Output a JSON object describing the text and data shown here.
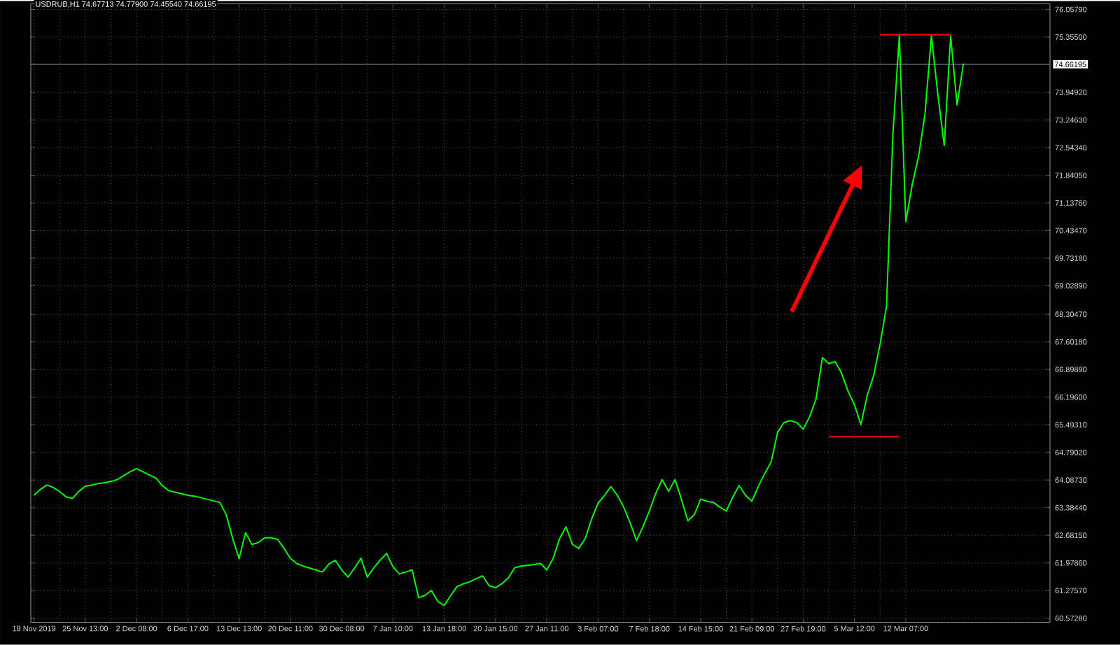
{
  "chart_data": {
    "type": "line",
    "title": "USDRUB,H1  74.67713 74.77900 74.45540 74.66195",
    "categories": [
      "18 Nov 2019",
      null,
      null,
      null,
      null,
      null,
      null,
      null,
      "25 Nov 13:00",
      null,
      null,
      null,
      null,
      null,
      null,
      null,
      "2 Dec 08:00",
      null,
      null,
      null,
      null,
      null,
      null,
      null,
      "6 Dec 17:00",
      null,
      null,
      null,
      null,
      null,
      null,
      null,
      "13 Dec 13:00",
      null,
      null,
      null,
      null,
      null,
      null,
      null,
      "20 Dec 11:00",
      null,
      null,
      null,
      null,
      null,
      null,
      null,
      "30 Dec 08:00",
      null,
      null,
      null,
      null,
      null,
      null,
      null,
      "7 Jan 10:00",
      null,
      null,
      null,
      null,
      null,
      null,
      null,
      "13 Jan 18:00",
      null,
      null,
      null,
      null,
      null,
      null,
      null,
      "20 Jan 15:00",
      null,
      null,
      null,
      null,
      null,
      null,
      null,
      "27 Jan 11:00",
      null,
      null,
      null,
      null,
      null,
      null,
      null,
      "3 Feb 07:00",
      null,
      null,
      null,
      null,
      null,
      null,
      null,
      "7 Feb 18:00",
      null,
      null,
      null,
      null,
      null,
      null,
      null,
      "14 Feb 15:00",
      null,
      null,
      null,
      null,
      null,
      null,
      null,
      "21 Feb 09:00",
      null,
      null,
      null,
      null,
      null,
      null,
      null,
      "27 Feb 19:00",
      null,
      null,
      null,
      null,
      null,
      null,
      null,
      "5 Mar 12:00",
      null,
      null,
      null,
      null,
      null,
      null,
      null,
      "12 Mar 07:00",
      null,
      null,
      null,
      null,
      null,
      null,
      null,
      null,
      null,
      null,
      null,
      null,
      null,
      null,
      null,
      null,
      null,
      null,
      null,
      null,
      null,
      null
    ],
    "series": [
      {
        "color": "#00ff00",
        "values": [
          63.7,
          63.85,
          63.96,
          63.9,
          63.8,
          63.66,
          63.62,
          63.8,
          63.93,
          63.96,
          64.0,
          64.02,
          64.05,
          64.1,
          64.2,
          64.3,
          64.38,
          64.3,
          64.22,
          64.14,
          63.95,
          63.82,
          63.78,
          63.74,
          63.7,
          63.68,
          63.64,
          63.6,
          63.56,
          63.52,
          63.2,
          62.6,
          62.09,
          62.75,
          62.45,
          62.5,
          62.62,
          62.62,
          62.58,
          62.35,
          62.1,
          61.96,
          61.9,
          61.85,
          61.8,
          61.75,
          61.95,
          62.05,
          61.8,
          61.62,
          61.85,
          62.1,
          61.62,
          61.85,
          62.05,
          62.22,
          61.88,
          61.7,
          61.75,
          61.8,
          61.1,
          61.15,
          61.28,
          61.0,
          60.9,
          61.15,
          61.38,
          61.45,
          61.5,
          61.58,
          61.65,
          61.4,
          61.35,
          61.45,
          61.6,
          61.86,
          61.9,
          61.92,
          61.94,
          61.97,
          61.8,
          62.1,
          62.6,
          62.9,
          62.45,
          62.35,
          62.6,
          63.1,
          63.5,
          63.7,
          63.92,
          63.7,
          63.4,
          63.0,
          62.55,
          62.9,
          63.3,
          63.75,
          64.1,
          63.8,
          64.1,
          63.6,
          63.05,
          63.2,
          63.6,
          63.55,
          63.52,
          63.4,
          63.3,
          63.65,
          63.95,
          63.7,
          63.55,
          63.93,
          64.25,
          64.55,
          65.3,
          65.55,
          65.6,
          65.55,
          65.38,
          65.7,
          66.15,
          67.2,
          67.05,
          67.1,
          66.8,
          66.35,
          66.0,
          65.5,
          66.25,
          66.75,
          67.55,
          68.51,
          72.9,
          75.39,
          70.66,
          71.6,
          72.32,
          73.4,
          75.39,
          73.9,
          72.6,
          75.39,
          73.63,
          74.68,
          null,
          null,
          null,
          null,
          null,
          null,
          null,
          null,
          null,
          null,
          null,
          null,
          null
        ]
      },
      {
        "color": "#ff0000",
        "values": [
          null,
          null,
          null,
          null,
          null,
          null,
          null,
          null,
          null,
          null,
          null,
          null,
          null,
          null,
          null,
          null,
          null,
          null,
          null,
          null,
          null,
          null,
          null,
          null,
          null,
          null,
          null,
          null,
          null,
          null,
          null,
          null,
          null,
          null,
          null,
          null,
          null,
          null,
          null,
          null,
          null,
          null,
          null,
          null,
          null,
          null,
          null,
          null,
          null,
          null,
          null,
          null,
          null,
          null,
          null,
          null,
          null,
          null,
          null,
          null,
          null,
          null,
          null,
          null,
          null,
          null,
          null,
          null,
          null,
          null,
          null,
          null,
          null,
          null,
          null,
          null,
          null,
          null,
          null,
          null,
          null,
          null,
          null,
          null,
          null,
          null,
          null,
          null,
          null,
          null,
          null,
          null,
          null,
          null,
          null,
          null,
          null,
          null,
          null,
          null,
          null,
          null,
          null,
          null,
          null,
          null,
          null,
          null,
          null,
          null,
          null,
          null,
          null,
          null,
          null,
          null,
          null,
          null,
          null,
          null,
          null,
          null,
          null,
          null,
          null,
          null,
          null,
          null,
          null,
          null,
          null,
          null,
          75.42,
          75.42,
          75.42,
          75.42,
          75.42,
          75.42,
          75.42,
          75.42,
          75.42,
          75.42,
          75.42,
          75.42,
          null,
          null,
          null,
          null,
          null,
          null,
          null,
          null,
          null,
          null,
          null,
          null,
          null,
          null,
          null
        ]
      },
      {
        "color": "#ff0000",
        "values": [
          null,
          null,
          null,
          null,
          null,
          null,
          null,
          null,
          null,
          null,
          null,
          null,
          null,
          null,
          null,
          null,
          null,
          null,
          null,
          null,
          null,
          null,
          null,
          null,
          null,
          null,
          null,
          null,
          null,
          null,
          null,
          null,
          null,
          null,
          null,
          null,
          null,
          null,
          null,
          null,
          null,
          null,
          null,
          null,
          null,
          null,
          null,
          null,
          null,
          null,
          null,
          null,
          null,
          null,
          null,
          null,
          null,
          null,
          null,
          null,
          null,
          null,
          null,
          null,
          null,
          null,
          null,
          null,
          null,
          null,
          null,
          null,
          null,
          null,
          null,
          null,
          null,
          null,
          null,
          null,
          null,
          null,
          null,
          null,
          null,
          null,
          null,
          null,
          null,
          null,
          null,
          null,
          null,
          null,
          null,
          null,
          null,
          null,
          null,
          null,
          null,
          null,
          null,
          null,
          null,
          null,
          null,
          null,
          null,
          null,
          null,
          null,
          null,
          null,
          null,
          null,
          null,
          null,
          null,
          null,
          null,
          null,
          null,
          null,
          65.19,
          65.19,
          65.19,
          65.19,
          65.19,
          65.19,
          65.19,
          65.19,
          65.19,
          65.19,
          65.19,
          65.19,
          null,
          null,
          null,
          null,
          null,
          null,
          null,
          null,
          null,
          null,
          null,
          null,
          null,
          null,
          null,
          null,
          null,
          null,
          null,
          null,
          null,
          null,
          null
        ]
      }
    ],
    "ylim": [
      60.47,
      76.2
    ],
    "yticks": [
      {
        "value": 76.0579,
        "label": "76.05790"
      },
      {
        "value": 75.355,
        "label": "75.35500"
      },
      {
        "value": 73.9492,
        "label": "73.94920"
      },
      {
        "value": 73.2463,
        "label": "73.24630"
      },
      {
        "value": 72.5434,
        "label": "72.54340"
      },
      {
        "value": 71.8405,
        "label": "71.84050"
      },
      {
        "value": 71.1376,
        "label": "71.13760"
      },
      {
        "value": 70.4347,
        "label": "70.43470"
      },
      {
        "value": 69.7318,
        "label": "69.73180"
      },
      {
        "value": 69.0289,
        "label": "69.02890"
      },
      {
        "value": 68.3047,
        "label": "68.30470"
      },
      {
        "value": 67.6018,
        "label": "67.60180"
      },
      {
        "value": 66.8989,
        "label": "66.89890"
      },
      {
        "value": 66.196,
        "label": "66.19600"
      },
      {
        "value": 65.4931,
        "label": "65.49310"
      },
      {
        "value": 64.7902,
        "label": "64.79020"
      },
      {
        "value": 64.0873,
        "label": "64.08730"
      },
      {
        "value": 63.3844,
        "label": "63.38440"
      },
      {
        "value": 62.6815,
        "label": "62.68150"
      },
      {
        "value": 61.9786,
        "label": "61.97860"
      },
      {
        "value": 61.2757,
        "label": "61.27570"
      },
      {
        "value": 60.5728,
        "label": "60.57280"
      }
    ],
    "grid": true,
    "ref_lines": [
      {
        "axis": "y",
        "value": 74.66195,
        "label": "74.66195",
        "color": "#8a9aa8"
      }
    ]
  }
}
